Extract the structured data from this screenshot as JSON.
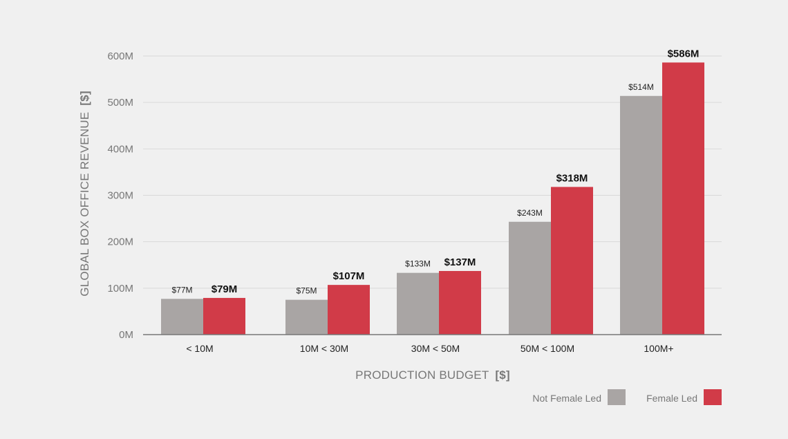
{
  "chart_data": {
    "type": "bar",
    "categories": [
      "< 10M",
      "10M < 30M",
      "30M < 50M",
      "50M < 100M",
      "100M+"
    ],
    "series": [
      {
        "name": "Not Female Led",
        "color": "#a9a5a4",
        "values": [
          77,
          75,
          133,
          243,
          514
        ],
        "labels": [
          "$77M",
          "$75M",
          "$133M",
          "$243M",
          "$514M"
        ]
      },
      {
        "name": "Female Led",
        "color": "#d13b48",
        "values": [
          79,
          107,
          137,
          318,
          586
        ],
        "labels": [
          "$79M",
          "$107M",
          "$137M",
          "$318M",
          "$586M"
        ]
      }
    ],
    "yticks": [
      0,
      100,
      200,
      300,
      400,
      500,
      600
    ],
    "ytick_labels": [
      "0M",
      "100M",
      "200M",
      "300M",
      "400M",
      "500M",
      "600M"
    ],
    "ylim": [
      0,
      600
    ],
    "xlabel": "PRODUCTION BUDGET",
    "xlabel_unit": "[$]",
    "ylabel": "GLOBAL BOX OFFICE REVENUE",
    "ylabel_unit": "[$]",
    "legend_position": "bottom-right",
    "grid": true
  }
}
